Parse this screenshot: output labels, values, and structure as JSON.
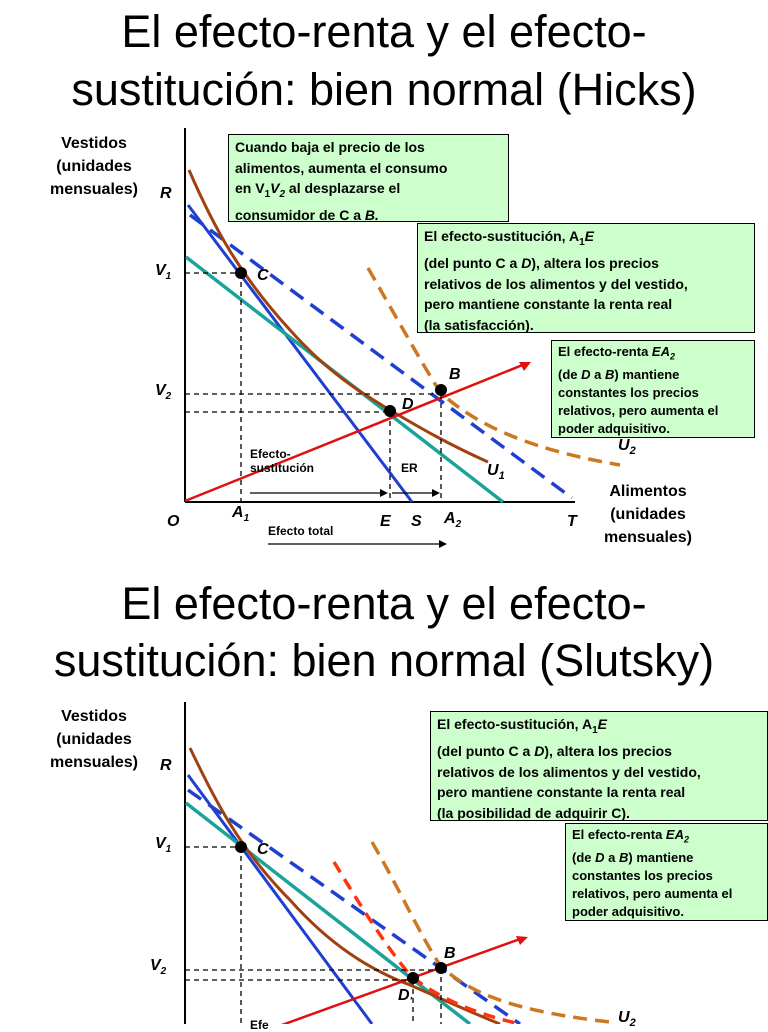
{
  "slide1": {
    "title_line1": "El efecto-renta y el efecto-",
    "title_line2": "sustitución: bien normal (Hicks)",
    "y_caption": [
      "Vestidos",
      "(unidades",
      "mensuales)"
    ],
    "x_caption": [
      "Alimentos",
      "(unidades",
      "mensuales)"
    ],
    "labels": {
      "R": "R",
      "V1": "V1",
      "V2": "V2",
      "O": "O",
      "A1": "A1",
      "E": "E",
      "S": "S",
      "A2": "A2",
      "T": "T",
      "C": "C",
      "D": "D",
      "B": "B",
      "U1": "U1",
      "U2": "U2"
    },
    "note_top": [
      "Cuando baja el precio de los",
      "alimentos, aumenta el consumo",
      "en V1V2 al desplazarse el",
      "consumidor de C a B."
    ],
    "note_sust": [
      "El efecto-sustitución, A1E",
      "(del punto C a D), altera los precios",
      "relativos de los alimentos y del vestido,",
      "pero mantiene constante la renta real",
      "(la satisfacción)."
    ],
    "note_renta": [
      "El efecto-renta EA2",
      "(de D a B) mantiene",
      "constantes los precios",
      "relativos, pero aumenta el",
      "poder adquisitivo."
    ],
    "efecto_sustitucion": [
      "Efecto-",
      "sustitución"
    ],
    "er": "ER",
    "efecto_total": "Efecto total"
  },
  "slide2": {
    "title_line1": "El efecto-renta y el efecto-",
    "title_line2": "sustitución: bien normal (Slutsky)",
    "y_caption": [
      "Vestidos",
      "(unidades",
      "mensuales)"
    ],
    "labels": {
      "R": "R",
      "V1": "V1",
      "V2": "V2",
      "C": "C",
      "D": "D",
      "B": "B",
      "U2": "U2"
    },
    "note_sust": [
      "El efecto-sustitución, A1E",
      "(del punto C a D), altera los precios",
      "relativos de los alimentos y del vestido,",
      "pero mantiene constante la renta real",
      "(la posibilidad de adquirir C)."
    ],
    "note_renta": [
      "El efecto-renta EA2",
      "(de D a B) mantiene",
      "constantes los precios",
      "relativos, pero aumenta el",
      "poder adquisitivo."
    ],
    "efecto_partial": "Efe"
  },
  "colors": {
    "budget_blue": "#1f3fd0",
    "indiff_brown": "#a0420f",
    "budget_teal": "#1aa39a",
    "engel_red": "#e01010",
    "indiff_orange": "#cc7722",
    "indiff_red_dashed": "#ff3311",
    "note_bg": "#ccffcc"
  }
}
